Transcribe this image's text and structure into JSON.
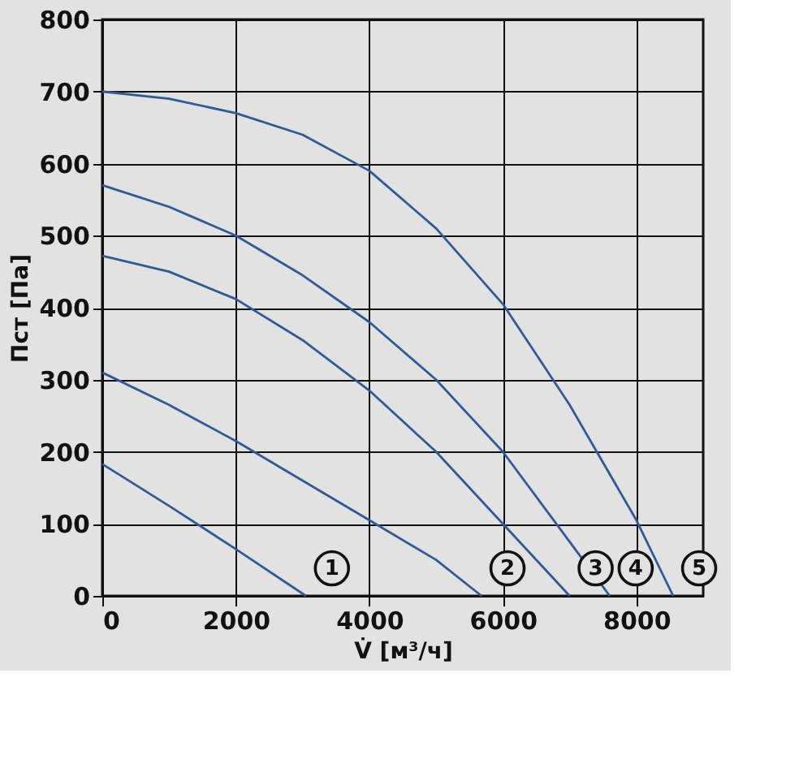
{
  "chart_data": {
    "type": "line",
    "xlabel": "V̇ [м³/ч]",
    "ylabel": "Пст [Па]",
    "xlim": [
      0,
      9000
    ],
    "xticks": [
      0,
      2000,
      4000,
      6000,
      8000
    ],
    "ylim": [
      0,
      800
    ],
    "yticks": [
      0,
      100,
      200,
      300,
      400,
      500,
      600,
      700,
      800
    ],
    "grid": true,
    "marker": "none",
    "line_style": "solid",
    "series": [
      {
        "name": "1",
        "color": "#2e5a9a",
        "x": [
          0,
          1000,
          2000,
          3050
        ],
        "values": [
          183,
          125,
          65,
          0
        ]
      },
      {
        "name": "2",
        "color": "#2e5a9a",
        "x": [
          0,
          1000,
          2000,
          3000,
          4000,
          5000,
          5680
        ],
        "values": [
          310,
          265,
          215,
          160,
          105,
          50,
          0
        ]
      },
      {
        "name": "3",
        "color": "#2e5a9a",
        "x": [
          0,
          1000,
          2000,
          3000,
          4000,
          5000,
          6000,
          7000
        ],
        "values": [
          472,
          450,
          412,
          355,
          285,
          200,
          100,
          0
        ]
      },
      {
        "name": "4",
        "color": "#2e5a9a",
        "x": [
          0,
          1000,
          2000,
          3000,
          4000,
          5000,
          6000,
          7000,
          7600
        ],
        "values": [
          570,
          540,
          500,
          445,
          380,
          300,
          200,
          75,
          0
        ]
      },
      {
        "name": "5",
        "color": "#2e5a9a",
        "x": [
          0,
          1000,
          2000,
          3000,
          4000,
          5000,
          6000,
          7000,
          8000,
          8550
        ],
        "values": [
          700,
          690,
          670,
          640,
          590,
          510,
          405,
          265,
          105,
          0
        ]
      }
    ]
  }
}
